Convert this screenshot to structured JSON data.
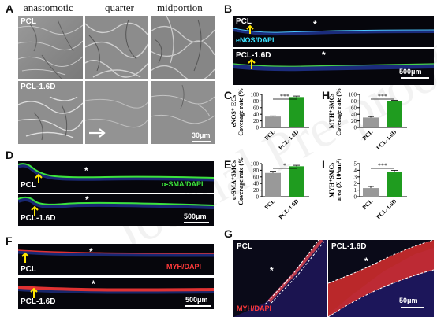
{
  "panels": {
    "A": {
      "label": "A",
      "columns": [
        "anastomotic",
        "quarter",
        "midportion"
      ],
      "rows": [
        "PCL",
        "PCL-1.6D"
      ],
      "scale": "30μm"
    },
    "B": {
      "label": "B",
      "rows": [
        "PCL",
        "PCL-1.6D"
      ],
      "marker": "eNOS/DAPI",
      "scale": "500μm"
    },
    "D": {
      "label": "D",
      "rows": [
        "PCL",
        "PCL-1.6D"
      ],
      "marker": "α-SMA/DAPI",
      "scale": "500μm"
    },
    "F": {
      "label": "F",
      "rows": [
        "PCL",
        "PCL-1.6D"
      ],
      "marker": "MYH/DAPI",
      "scale": "500μm"
    },
    "G": {
      "label": "G",
      "rows": [
        "PCL",
        "PCL-1.6D"
      ],
      "marker": "MYH/DAPI",
      "scale": "50μm"
    }
  },
  "star": "*",
  "colors": {
    "pcl_bar": "#999999",
    "pcl16d_bar": "#1f9c1f",
    "enos": "#3cc8ff",
    "asma": "#3ce23c",
    "myh": "#e83838",
    "dapi": "#2040d0"
  },
  "chart_data": [
    {
      "panel": "C",
      "type": "bar",
      "categories": [
        "PCL",
        "PCL-1.6D"
      ],
      "values": [
        33,
        92
      ],
      "errors": [
        2,
        3
      ],
      "ylabel": [
        "eNOS⁺ ECs",
        "Coverage rate (%)"
      ],
      "ylim": [
        0,
        100
      ],
      "yticks": [
        0,
        20,
        40,
        60,
        80,
        100
      ],
      "significance": "***"
    },
    {
      "panel": "H",
      "type": "bar",
      "categories": [
        "PCL",
        "PCL-1.6D"
      ],
      "values": [
        30,
        79
      ],
      "errors": [
        3,
        3
      ],
      "ylabel": [
        "MYH⁺SMCs",
        "Coverage rate (%)"
      ],
      "ylim": [
        0,
        100
      ],
      "yticks": [
        0,
        20,
        40,
        60,
        80,
        100
      ],
      "significance": "***"
    },
    {
      "panel": "E",
      "type": "bar",
      "categories": [
        "PCL",
        "PCL-1.6D"
      ],
      "values": [
        72,
        92
      ],
      "errors": [
        5,
        3
      ],
      "ylabel": [
        "α-SMA⁺SMCs",
        "Coverage rate (%)"
      ],
      "ylim": [
        0,
        100
      ],
      "yticks": [
        0,
        20,
        40,
        60,
        80,
        100
      ],
      "significance": "*"
    },
    {
      "panel": "I",
      "type": "bar",
      "categories": [
        "PCL",
        "PCL-1.6D"
      ],
      "values": [
        1.3,
        3.8
      ],
      "errors": [
        0.25,
        0.2
      ],
      "ylabel": [
        "MYH⁺SMCs",
        "area (X 10⁴um²)"
      ],
      "ylim": [
        0,
        5
      ],
      "yticks": [
        0,
        1,
        2,
        3,
        4,
        5
      ],
      "significance": "***"
    }
  ]
}
